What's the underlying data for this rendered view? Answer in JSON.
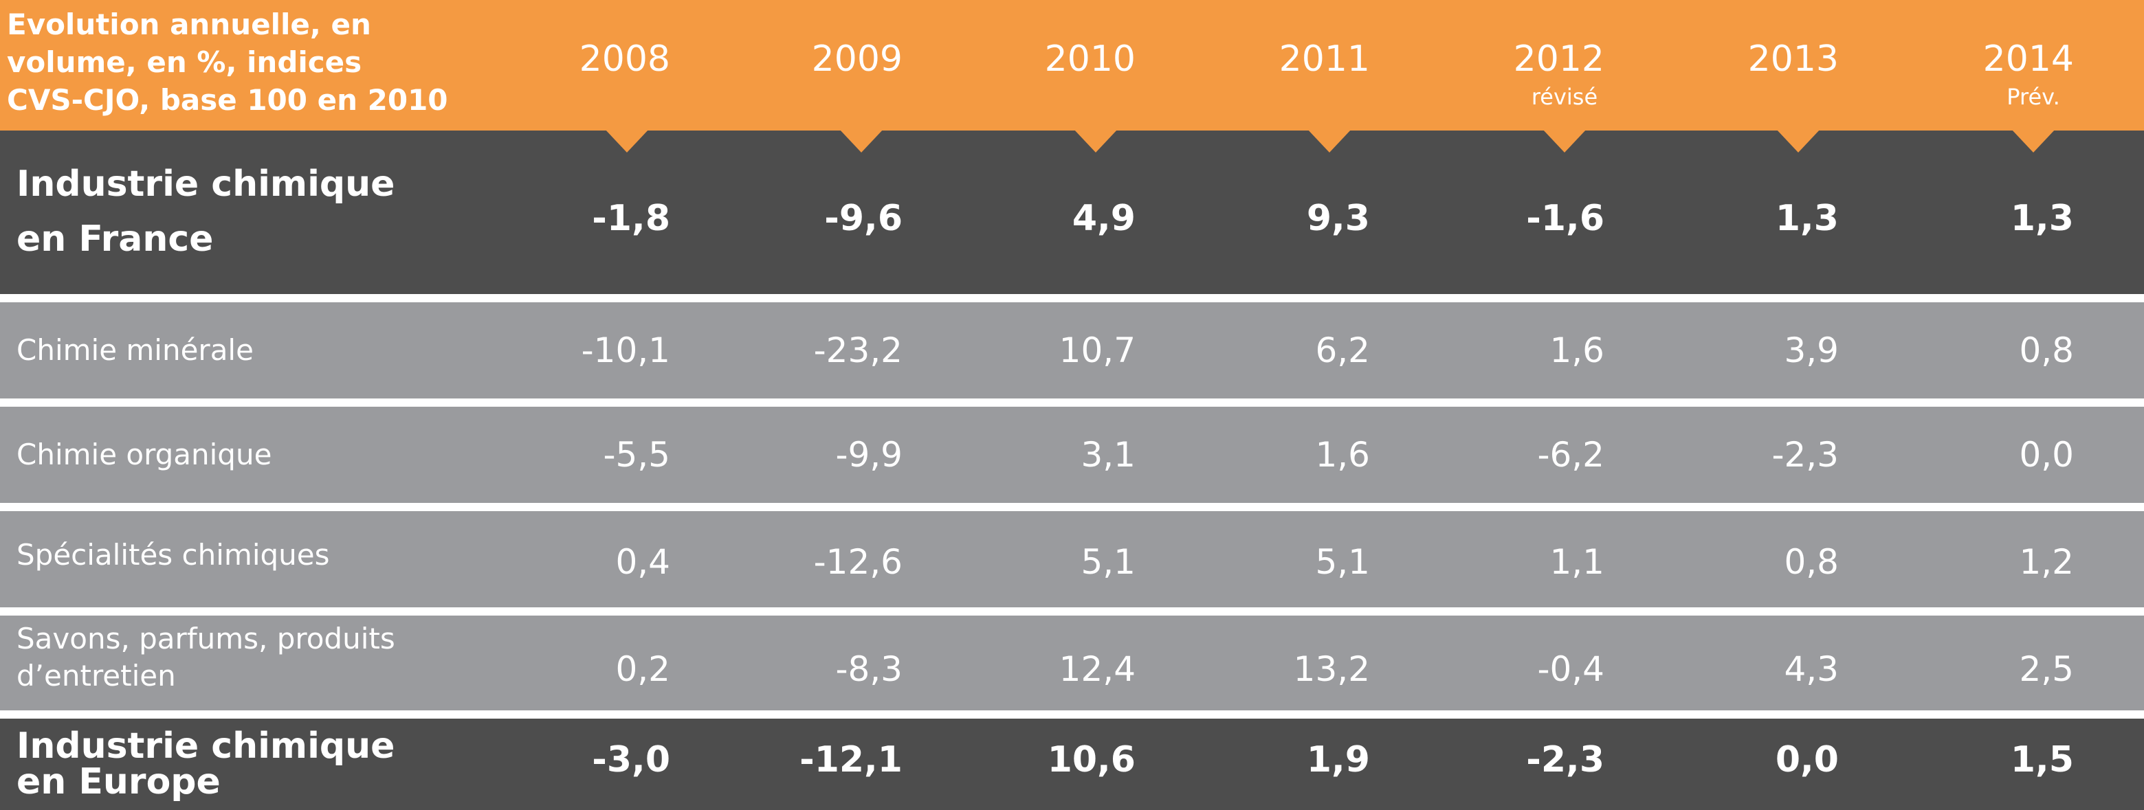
{
  "chart_data": {
    "type": "table",
    "title_lines": [
      "Evolution annuelle, en",
      "volume, en %, indices",
      "CVS-CJO, base 100 en 2010"
    ],
    "columns": [
      {
        "year": "2008",
        "note": ""
      },
      {
        "year": "2009",
        "note": ""
      },
      {
        "year": "2010",
        "note": ""
      },
      {
        "year": "2011",
        "note": ""
      },
      {
        "year": "2012",
        "note": "révisé"
      },
      {
        "year": "2013",
        "note": ""
      },
      {
        "year": "2014",
        "note": "Prév."
      }
    ],
    "rows": [
      {
        "style": "dark",
        "label_lines": [
          "Industrie chimique",
          "en France"
        ],
        "values": [
          "-1,8",
          "-9,6",
          "4,9",
          "9,3",
          "-1,6",
          "1,3",
          "1,3"
        ]
      },
      {
        "style": "light",
        "label_lines": [
          "Chimie minérale"
        ],
        "values": [
          "-10,1",
          "-23,2",
          "10,7",
          "6,2",
          "1,6",
          "3,9",
          "0,8"
        ]
      },
      {
        "style": "light",
        "label_lines": [
          "Chimie organique"
        ],
        "values": [
          "-5,5",
          "-9,9",
          "3,1",
          "1,6",
          "-6,2",
          "-2,3",
          "0,0"
        ]
      },
      {
        "style": "light",
        "label_lines": [
          "Spécialités chimiques"
        ],
        "values": [
          "0,4",
          "-12,6",
          "5,1",
          "5,1",
          "1,1",
          "0,8",
          "1,2"
        ]
      },
      {
        "style": "light",
        "label_lines": [
          "Savons, parfums, produits",
          "d’entretien"
        ],
        "values": [
          "0,2",
          "-8,3",
          "12,4",
          "13,2",
          "-0,4",
          "4,3",
          "2,5"
        ]
      },
      {
        "style": "dark",
        "label_lines": [
          "Industrie chimique",
          "en Europe"
        ],
        "values": [
          "-3,0",
          "-12,1",
          "10,6",
          "1,9",
          "-2,3",
          "0,0",
          "1,5"
        ]
      }
    ]
  },
  "colors": {
    "header_orange": "#f49a42",
    "dark_row": "#4d4d4d",
    "light_row": "#9a9b9e",
    "text": "#ffffff"
  }
}
